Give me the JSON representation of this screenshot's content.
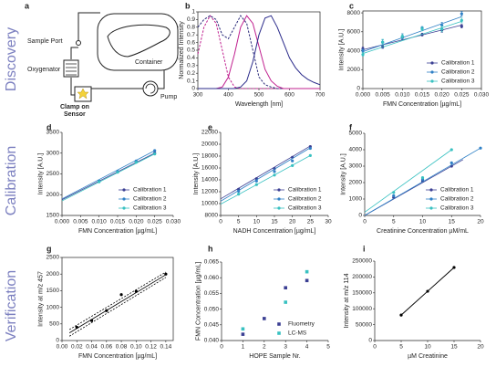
{
  "rows": [
    "Discovery",
    "Calibration",
    "Verification"
  ],
  "diagram": {
    "panel": "a",
    "labels": {
      "sample_port": "Sample Port",
      "oxygenator": "Oxygenator",
      "clamp": [
        "Clamp on",
        "Sensor"
      ],
      "container": "Container",
      "pump": "Pump"
    }
  },
  "chart_data": [
    {
      "type": "line",
      "panel": "b",
      "xlabel": "Wavelength [nm]",
      "ylabel": "Normalized Intensity",
      "frame": true,
      "x": [
        300,
        320,
        340,
        360,
        380,
        400,
        420,
        440,
        460,
        480,
        500,
        520,
        540,
        560,
        580,
        600,
        620,
        640,
        660,
        680,
        700
      ],
      "xlim": [
        300,
        700
      ],
      "xticks": [
        300,
        400,
        500,
        600,
        700
      ],
      "ylim": [
        0,
        1
      ],
      "yticks": [
        0,
        0.1,
        0.2,
        0.3,
        0.4,
        0.5,
        0.6,
        0.7,
        0.8,
        0.9,
        1
      ],
      "series": [
        {
          "color": "#c0208f",
          "dash": true,
          "values": [
            0.45,
            0.8,
            0.95,
            0.85,
            0.5,
            0.15,
            0.02,
            0,
            0,
            0,
            0,
            0,
            0,
            0,
            0,
            0,
            0,
            0,
            0,
            0,
            0
          ]
        },
        {
          "color": "#2a2a7a",
          "dash": true,
          "values": [
            0.8,
            0.9,
            0.95,
            0.9,
            0.7,
            0.65,
            0.8,
            0.95,
            0.85,
            0.5,
            0.15,
            0.05,
            0.02,
            0,
            0,
            0,
            0,
            0,
            0,
            0,
            0
          ]
        },
        {
          "color": "#c0208f",
          "dash": false,
          "values": [
            0,
            0,
            0,
            0,
            0.02,
            0.15,
            0.45,
            0.8,
            0.95,
            0.85,
            0.55,
            0.25,
            0.1,
            0.03,
            0,
            0,
            0,
            0,
            0,
            0,
            0
          ]
        },
        {
          "color": "#2a2a8a",
          "dash": false,
          "values": [
            0,
            0,
            0,
            0,
            0,
            0,
            0,
            0.02,
            0.1,
            0.35,
            0.7,
            0.92,
            0.95,
            0.8,
            0.6,
            0.4,
            0.27,
            0.18,
            0.12,
            0.08,
            0.05
          ]
        }
      ]
    },
    {
      "type": "scatter",
      "panel": "c",
      "xlabel": "FMN Concentration [µg/mL]",
      "ylabel": "Intensity [A.U.]",
      "frame": true,
      "legend": "lower right",
      "x": [
        0,
        0.005,
        0.01,
        0.015,
        0.02,
        0.025
      ],
      "xlim": [
        0,
        0.03
      ],
      "xticks": [
        {
          "value": 0,
          "label": "0.000"
        },
        0.005,
        {
          "value": 0.01,
          "label": "0.010"
        },
        0.015,
        {
          "value": 0.02,
          "label": "0.020"
        },
        0.025,
        {
          "value": 0.03,
          "label": "0.030"
        }
      ],
      "ylim": [
        0,
        8200
      ],
      "yticks": [
        0,
        2000,
        4000,
        6000,
        8000
      ],
      "series": [
        {
          "name": "Calibration 1",
          "color": "#3b3f93",
          "values": [
            4200,
            4400,
            5400,
            5700,
            6200,
            6600
          ],
          "errors": [
            200,
            150,
            200,
            150,
            250,
            200
          ],
          "fit_x": [
            0,
            0.025
          ],
          "fit": [
            4100,
            6700
          ]
        },
        {
          "name": "Calibration 2",
          "color": "#2f80c6",
          "values": [
            4000,
            4900,
            5500,
            6400,
            6700,
            7900
          ],
          "errors": [
            150,
            250,
            300,
            150,
            300,
            250
          ],
          "fit_x": [
            0,
            0.025
          ],
          "fit": [
            3900,
            7600
          ]
        },
        {
          "name": "Calibration 3",
          "color": "#38c1c1",
          "values": [
            3600,
            4900,
            5500,
            6300,
            6300,
            7200
          ],
          "errors": [
            200,
            300,
            200,
            200,
            300,
            250
          ],
          "fit_x": [
            0,
            0.025
          ],
          "fit": [
            3700,
            7100
          ]
        }
      ]
    },
    {
      "type": "scatter",
      "panel": "d",
      "xlabel": "FMN Concentration [µg/mL]",
      "ylabel": "Intensity [A.U.]",
      "legend": "lower right",
      "x": [
        0.01,
        0.015,
        0.02,
        0.025
      ],
      "xlim": [
        0,
        0.03
      ],
      "xticks": [
        {
          "value": 0,
          "label": "0.000"
        },
        0.005,
        {
          "value": 0.01,
          "label": "0.010"
        },
        0.015,
        {
          "value": 0.02,
          "label": "0.020"
        },
        0.025,
        {
          "value": 0.03,
          "label": "0.030"
        }
      ],
      "ylim": [
        1500,
        3500
      ],
      "yticks": [
        1500,
        2000,
        2500,
        3000,
        3500
      ],
      "series": [
        {
          "name": "Calibration 1",
          "color": "#3b3f93",
          "values": [
            2320,
            2550,
            2790,
            3000
          ],
          "fit_x": [
            0,
            0.025
          ],
          "fit": [
            1880,
            3000
          ]
        },
        {
          "name": "Calibration 2",
          "color": "#2f80c6",
          "values": [
            2330,
            2560,
            2810,
            3060
          ],
          "fit_x": [
            0,
            0.025
          ],
          "fit": [
            1900,
            3060
          ]
        },
        {
          "name": "Calibration 3",
          "color": "#38c1c1",
          "values": [
            2310,
            2540,
            2780,
            2980
          ],
          "fit_x": [
            0,
            0.025
          ],
          "fit": [
            1850,
            2980
          ]
        }
      ]
    },
    {
      "type": "scatter",
      "panel": "e",
      "xlabel": "NADH Concentration [µg/mL]",
      "ylabel": "Intensity [A.U.]",
      "legend": "lower right",
      "x": [
        5,
        10,
        15,
        20,
        25
      ],
      "xlim": [
        0,
        30
      ],
      "xticks": [
        0,
        5,
        10,
        15,
        20,
        25,
        30
      ],
      "ylim": [
        8000,
        22000
      ],
      "yticks": [
        8000,
        10000,
        12000,
        14000,
        16000,
        18000,
        20000,
        22000
      ],
      "series": [
        {
          "name": "Calibration 1",
          "color": "#3b3f93",
          "values": [
            12400,
            14200,
            15900,
            17800,
            19600
          ],
          "fit_x": [
            0,
            25
          ],
          "fit": [
            10800,
            19700
          ]
        },
        {
          "name": "Calibration 2",
          "color": "#2f80c6",
          "values": [
            12100,
            13800,
            15400,
            17200,
            19300
          ],
          "fit_x": [
            0,
            25
          ],
          "fit": [
            10400,
            19400
          ]
        },
        {
          "name": "Calibration 3",
          "color": "#38c1c1",
          "values": [
            11600,
            13200,
            14800,
            16400,
            18100
          ],
          "fit_x": [
            0,
            25
          ],
          "fit": [
            9900,
            18100
          ]
        }
      ]
    },
    {
      "type": "scatter",
      "panel": "f",
      "xlabel": "Creatinine Concentration µM/mL",
      "ylabel": "Intensity [A.U.]",
      "legend": "lower right",
      "x": [
        0,
        5,
        10,
        15,
        20
      ],
      "xlim": [
        0,
        20
      ],
      "xticks": [
        0,
        5,
        10,
        15,
        20
      ],
      "ylim": [
        0,
        5000
      ],
      "yticks": [
        0,
        1000,
        2000,
        3000,
        4000,
        5000
      ],
      "series": [
        {
          "name": "Calibration 1",
          "color": "#3b3f93",
          "values": [
            null,
            1100,
            2100,
            3000,
            null
          ],
          "fit_x": [
            0,
            17
          ],
          "fit": [
            0,
            3400
          ]
        },
        {
          "name": "Calibration 2",
          "color": "#2f80c6",
          "values": [
            null,
            1200,
            2200,
            3200,
            4100
          ],
          "fit_x": [
            0,
            20
          ],
          "fit": [
            0,
            4100
          ]
        },
        {
          "name": "Calibration 3",
          "color": "#38c1c1",
          "values": [
            null,
            1400,
            2300,
            4000,
            null
          ],
          "fit_x": [
            0,
            15
          ],
          "fit": [
            200,
            4000
          ]
        }
      ]
    },
    {
      "type": "scatter",
      "panel": "g",
      "xlabel": "FMN Concentration [µg/mL]",
      "ylabel": "Intensity at m/z 457",
      "frame": true,
      "x": [
        0.02,
        0.04,
        0.06,
        0.08,
        0.1,
        0.14
      ],
      "xlim": [
        0,
        0.15
      ],
      "xticks": [
        {
          "value": 0,
          "label": "0.00"
        },
        0.02,
        0.04,
        0.06,
        0.08,
        {
          "value": 0.1,
          "label": "0.10"
        },
        0.12,
        0.14
      ],
      "ylim": [
        0,
        2500
      ],
      "yticks": [
        0,
        500,
        1000,
        1500,
        2000,
        2500
      ],
      "series": [
        {
          "color": "#000000",
          "values": [
            400,
            600,
            900,
            1380,
            1480,
            2000
          ],
          "fit_x": [
            0.01,
            0.14
          ],
          "fit": [
            230,
            1980
          ],
          "upper": [
            330,
            2060
          ],
          "lower": [
            130,
            1900
          ]
        }
      ]
    },
    {
      "type": "scatter",
      "panel": "h",
      "xlabel": "HOPE Sample Nr.",
      "ylabel": "FMN Concentration [µg/mL]",
      "legend": "lower right",
      "marker": "square",
      "x": [
        1,
        2,
        3,
        4
      ],
      "xlim": [
        0,
        5
      ],
      "xticks": [
        0,
        1,
        2,
        3,
        4,
        5
      ],
      "ylim": [
        0.04,
        0.065
      ],
      "yticks": [
        {
          "value": 0.04,
          "label": "0.040"
        },
        0.045,
        {
          "value": 0.05,
          "label": "0.050"
        },
        0.055,
        {
          "value": 0.06,
          "label": "0.060"
        },
        0.065
      ],
      "series": [
        {
          "name": "Fluometry",
          "color": "#3b3f93",
          "values": [
            0.042,
            0.047,
            0.0568,
            0.0591
          ]
        },
        {
          "name": "LC-MS",
          "color": "#38c1c1",
          "values": [
            0.0437,
            null,
            0.0522,
            0.0619
          ]
        }
      ]
    },
    {
      "type": "line",
      "panel": "i",
      "xlabel": "µM Creatinine",
      "ylabel": "Intensity at m/z 114",
      "markers": true,
      "x": [
        5,
        10,
        15
      ],
      "xlim": [
        0,
        20
      ],
      "xticks": [
        0,
        5,
        10,
        15,
        20
      ],
      "ylim": [
        0,
        250000
      ],
      "yticks": [
        0,
        50000,
        100000,
        150000,
        200000,
        250000
      ],
      "series": [
        {
          "color": "#000000",
          "values": [
            80000,
            155000,
            230000
          ]
        }
      ]
    }
  ]
}
